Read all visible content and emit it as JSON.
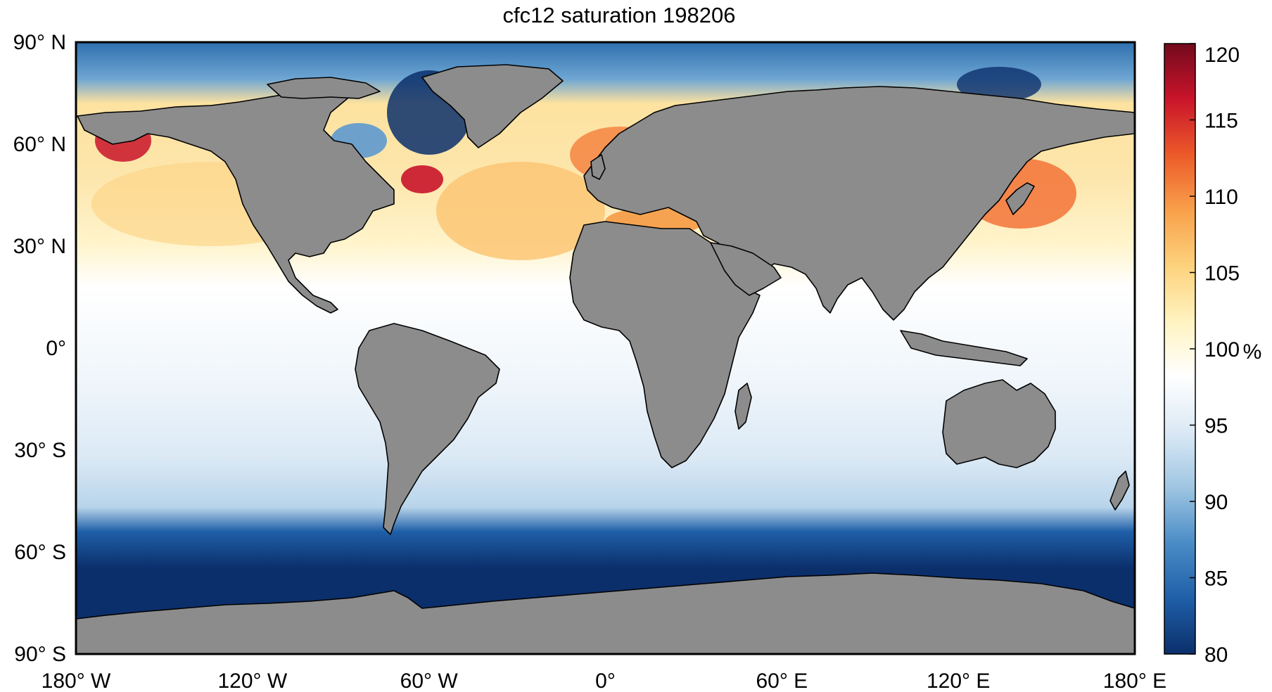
{
  "title": "cfc12 saturation 198206",
  "map": {
    "projection": "equirectangular",
    "lon_range": [
      -180,
      180
    ],
    "lat_range": [
      -90,
      90
    ],
    "land_color": "#8c8c8c",
    "coastline_color": "#000000"
  },
  "axes": {
    "x_ticks": [
      {
        "value": -180,
        "label": "180° W"
      },
      {
        "value": -120,
        "label": "120° W"
      },
      {
        "value": -60,
        "label": "60° W"
      },
      {
        "value": 0,
        "label": "0°"
      },
      {
        "value": 60,
        "label": "60° E"
      },
      {
        "value": 120,
        "label": "120° E"
      },
      {
        "value": 180,
        "label": "180° E"
      }
    ],
    "y_ticks": [
      {
        "value": 90,
        "label": "90° N"
      },
      {
        "value": 60,
        "label": "60° N"
      },
      {
        "value": 30,
        "label": "30° N"
      },
      {
        "value": 0,
        "label": "0°"
      },
      {
        "value": -30,
        "label": "30° S"
      },
      {
        "value": -60,
        "label": "60° S"
      },
      {
        "value": -90,
        "label": "90° S"
      }
    ]
  },
  "colorbar": {
    "min": 80,
    "max": 120,
    "unit": "%",
    "ticks": [
      "80",
      "85",
      "90",
      "95",
      "100",
      "105",
      "110",
      "115",
      "120"
    ],
    "colors": [
      "#0b2f6b",
      "#1f5fa8",
      "#4a8cc6",
      "#9fc6e2",
      "#dbe9f5",
      "#ffffff",
      "#fff3c0",
      "#fdd27d",
      "#f9a04a",
      "#ec5a2a",
      "#c9142a",
      "#730a1e"
    ]
  }
}
